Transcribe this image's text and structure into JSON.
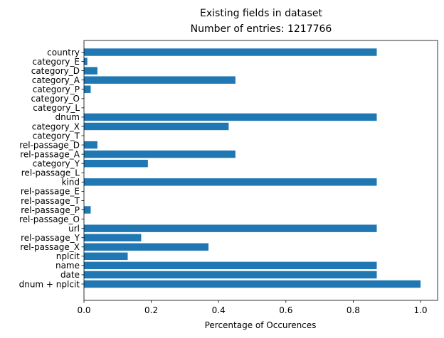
{
  "chart_data": {
    "type": "bar",
    "orientation": "horizontal",
    "title": "Existing fields in dataset",
    "subtitle": "Number of entries: 1217766",
    "xlabel": "Percentage of Occurences",
    "ylabel": "",
    "xlim": [
      0,
      1.05
    ],
    "xticks": [
      "0.0",
      "0.2",
      "0.4",
      "0.6",
      "0.8",
      "1.0"
    ],
    "grid": false,
    "bar_color": "#1f77b4",
    "categories": [
      "dnum + nplcit",
      "date",
      "name",
      "nplcit",
      "rel-passage_X",
      "rel-passage_Y",
      "url",
      "rel-passage_O",
      "rel-passage_P",
      "rel-passage_T",
      "rel-passage_E",
      "kind",
      "rel-passage_L",
      "category_Y",
      "rel-passage_A",
      "rel-passage_D",
      "category_T",
      "category_X",
      "dnum",
      "category_L",
      "category_O",
      "category_P",
      "category_A",
      "category_D",
      "category_E",
      "country"
    ],
    "values": [
      1.0,
      0.87,
      0.87,
      0.13,
      0.37,
      0.17,
      0.87,
      0.0,
      0.02,
      0.0,
      0.0,
      0.87,
      0.0,
      0.19,
      0.45,
      0.04,
      0.0,
      0.43,
      0.87,
      0.0,
      0.0,
      0.02,
      0.45,
      0.04,
      0.01,
      0.87
    ]
  }
}
